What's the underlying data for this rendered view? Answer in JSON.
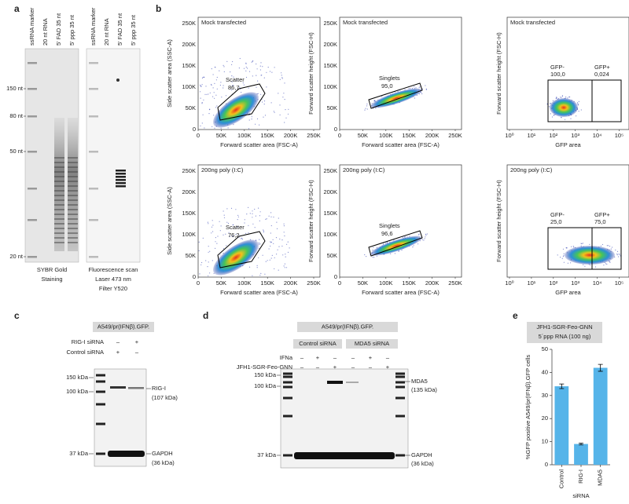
{
  "panel_a": {
    "label": "a",
    "gels": [
      {
        "lanes": [
          "ssRNA marker",
          "20 nt RNA",
          "5' FAD 35 nt",
          "5' ppp 35 nt"
        ],
        "caption": [
          "SYBR Gold",
          "Staining"
        ]
      },
      {
        "lanes": [
          "ssRNA marker",
          "20 nt RNA",
          "5' FAD 35 nt",
          "5' ppp 35 nt"
        ],
        "caption": [
          "Fluorescence scan",
          "Laser 473 nm",
          "Filter Y520"
        ]
      }
    ],
    "size_markers": [
      "150 nt",
      "80 nt",
      "50 nt",
      "20 nt"
    ]
  },
  "panel_b": {
    "label": "b",
    "linear_ticks": [
      "0",
      "50K",
      "100K",
      "150K",
      "200K",
      "250K"
    ],
    "log_ticks": [
      "10⁰",
      "10¹",
      "10²",
      "10³",
      "10⁴",
      "10⁵"
    ],
    "rows": [
      {
        "condition": "Mock transfected",
        "plots": [
          {
            "y_label": "Side scatter area (SSC-A)",
            "x_label": "Forward scatter area (FSC-A)",
            "gates": [
              {
                "name": "Scatter",
                "value": "86,7"
              }
            ]
          },
          {
            "y_label": "Forward scatter height (FSC-H)",
            "x_label": "Forward scatter area (FSC-A)",
            "gates": [
              {
                "name": "Singlets",
                "value": "95,0"
              }
            ]
          },
          {
            "y_label": "Forward scatter height (FSC-H)",
            "x_label": "GFP area",
            "gates": [
              {
                "name": "GFP-",
                "value": "100,0"
              },
              {
                "name": "GFP+",
                "value": "0,024"
              }
            ]
          }
        ]
      },
      {
        "condition": "200ng poly (I:C)",
        "plots": [
          {
            "y_label": "Side scatter area (SSC-A)",
            "x_label": "Forward scatter area (FSC-A)",
            "gates": [
              {
                "name": "Scatter",
                "value": "76,2"
              }
            ]
          },
          {
            "y_label": "Forward scatter height (FSC-H)",
            "x_label": "Forward scatter area (FSC-A)",
            "gates": [
              {
                "name": "Singlets",
                "value": "96,6"
              }
            ]
          },
          {
            "y_label": "Forward scatter height (FSC-H)",
            "x_label": "GFP area",
            "gates": [
              {
                "name": "GFP-",
                "value": "25,0"
              },
              {
                "name": "GFP+",
                "value": "75,0"
              }
            ]
          }
        ]
      }
    ]
  },
  "panel_c": {
    "label": "c",
    "header": "A549/pr(IFNβ).GFP.",
    "rows": [
      {
        "label": "RIG-I siRNA",
        "signs": [
          "–",
          "+"
        ]
      },
      {
        "label": "Control siRNA",
        "signs": [
          "+",
          "–"
        ]
      }
    ],
    "markers": [
      "150 kDa",
      "100 kDa",
      "37 kDa"
    ],
    "bands": [
      [
        "RIG-I",
        "(107 kDa)"
      ],
      [
        "GAPDH",
        "(36 kDa)"
      ]
    ]
  },
  "panel_d": {
    "label": "d",
    "header": "A549/pr(IFNβ).GFP.",
    "groups": [
      "Control siRNA",
      "MDA5 siRNA"
    ],
    "rows": [
      {
        "label": "IFNa",
        "signs": [
          "–",
          "+",
          "–",
          "–",
          "+",
          "–"
        ]
      },
      {
        "label": "JFH1-SGR-Feo-GNN",
        "signs": [
          "–",
          "–",
          "+",
          "–",
          "–",
          "+"
        ]
      }
    ],
    "markers": [
      "150 kDa",
      "100 kDa",
      "37 kDa"
    ],
    "bands": [
      [
        "MDA5",
        "(135 kDa)"
      ],
      [
        "GAPDH",
        "(36 kDa)"
      ]
    ]
  },
  "chart_data": {
    "type": "bar",
    "label": "e",
    "header": [
      "JFH1-SGR-Feo-GNN",
      "5´ppp RNA (100 ng)"
    ],
    "y_label": "%GFP positive A549/pr(IFNβ).GFP cells",
    "x_label": "siRNA",
    "categories": [
      "Control",
      "RIG-I",
      "MDA5"
    ],
    "values": [
      34,
      9,
      42
    ],
    "errors": [
      1,
      0.4,
      1.5
    ],
    "color": "#56b4e9",
    "ylim": [
      0,
      50
    ],
    "yticks": [
      0,
      10,
      20,
      30,
      40,
      50
    ]
  }
}
